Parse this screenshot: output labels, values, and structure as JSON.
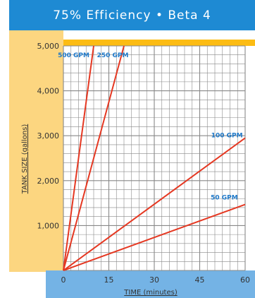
{
  "header": {
    "title": "75% Efficiency • Beta 4"
  },
  "colors": {
    "title_bg": "#1e8ad3",
    "left_band": "#fcd680",
    "bottom_band": "#74b3e5",
    "top_strip": "#fcbc14",
    "line": "#e53822",
    "grid": "#888888",
    "label": "#1e78c8"
  },
  "chart_data": {
    "type": "line",
    "xlabel": "TIME (minutes)",
    "ylabel": "TANK SIZE (gallons)",
    "xlim": [
      0,
      60
    ],
    "ylim": [
      0,
      5000
    ],
    "x_ticks": [
      "0",
      "15",
      "30",
      "45",
      "60"
    ],
    "y_ticks": [
      "1,000",
      "2,000",
      "3,000",
      "4,000",
      "5,000"
    ],
    "grid": true,
    "series": [
      {
        "name": "500 GPM",
        "x": [
          0,
          10
        ],
        "y": [
          0,
          5000
        ]
      },
      {
        "name": "250 GPM",
        "x": [
          0,
          20
        ],
        "y": [
          0,
          5000
        ]
      },
      {
        "name": "100 GPM",
        "x": [
          0,
          60
        ],
        "y": [
          0,
          2950
        ]
      },
      {
        "name": "50 GPM",
        "x": [
          0,
          60
        ],
        "y": [
          0,
          1470
        ]
      }
    ]
  }
}
